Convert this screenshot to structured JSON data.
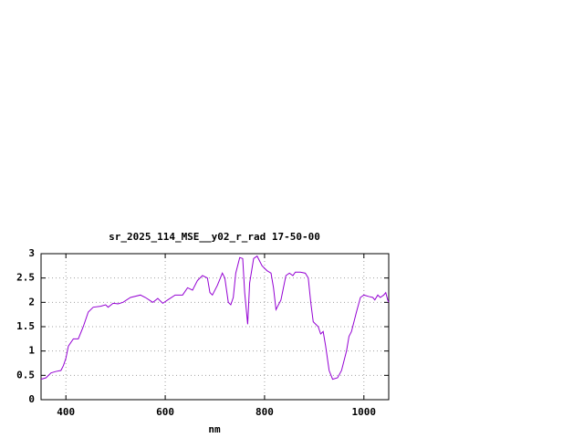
{
  "chart_data": {
    "type": "line",
    "title": "sr_2025_114_MSE__y02_r_rad 17-50-00",
    "x_label": "nm",
    "xlim": [
      350,
      1050
    ],
    "xticks": [
      400,
      600,
      800,
      1000
    ],
    "ylim": [
      0,
      3
    ],
    "yticks": [
      0,
      0.5,
      1,
      1.5,
      2,
      2.5,
      3
    ],
    "grid": true,
    "series": [
      {
        "color": "#9400d3",
        "x": [
          350,
          360,
          370,
          380,
          390,
          395,
          400,
          405,
          415,
          425,
          435,
          445,
          455,
          470,
          480,
          485,
          495,
          505,
          515,
          530,
          550,
          560,
          575,
          585,
          595,
          605,
          620,
          635,
          645,
          655,
          665,
          675,
          685,
          690,
          695,
          705,
          715,
          720,
          727,
          732,
          737,
          742,
          750,
          756,
          760,
          766,
          770,
          778,
          785,
          795,
          805,
          813,
          818,
          823,
          833,
          843,
          850,
          857,
          862,
          872,
          882,
          888,
          893,
          898,
          908,
          913,
          918,
          923,
          930,
          937,
          947,
          955,
          965,
          970,
          975,
          985,
          993,
          1000,
          1010,
          1018,
          1022,
          1028,
          1033,
          1040,
          1044,
          1048,
          1050
        ],
        "values": [
          0.42,
          0.45,
          0.55,
          0.58,
          0.6,
          0.7,
          0.85,
          1.1,
          1.25,
          1.25,
          1.5,
          1.8,
          1.9,
          1.92,
          1.95,
          1.9,
          1.98,
          1.97,
          2.0,
          2.1,
          2.15,
          2.1,
          2.0,
          2.08,
          1.98,
          2.05,
          2.15,
          2.15,
          2.3,
          2.25,
          2.45,
          2.55,
          2.5,
          2.2,
          2.15,
          2.35,
          2.6,
          2.5,
          2.0,
          1.95,
          2.1,
          2.6,
          2.92,
          2.9,
          2.2,
          1.55,
          2.4,
          2.9,
          2.95,
          2.75,
          2.65,
          2.6,
          2.3,
          1.85,
          2.05,
          2.55,
          2.6,
          2.55,
          2.62,
          2.62,
          2.6,
          2.5,
          2.0,
          1.6,
          1.5,
          1.35,
          1.4,
          1.1,
          0.6,
          0.42,
          0.45,
          0.6,
          1.0,
          1.3,
          1.4,
          1.8,
          2.1,
          2.15,
          2.12,
          2.1,
          2.05,
          2.15,
          2.1,
          2.15,
          2.2,
          2.05,
          2.0
        ]
      }
    ]
  }
}
